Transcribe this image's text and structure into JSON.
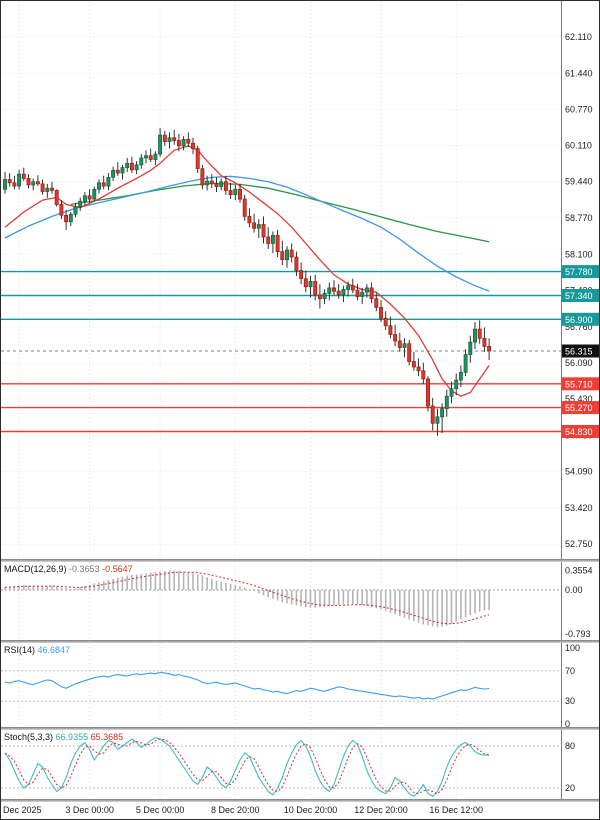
{
  "chart_data": {
    "type": "candlestick",
    "colors": {
      "bull": "#1d9460",
      "bear": "#df372c",
      "wick": "#1c1c1c"
    },
    "price_axis": {
      "ticks": [
        "62.110",
        "61.440",
        "60.770",
        "60.110",
        "59.440",
        "58.770",
        "58.100",
        "57.430",
        "56.760",
        "56.090",
        "55.430",
        "54.760",
        "54.090",
        "53.420",
        "52.750"
      ]
    },
    "x_axis_ticks": [
      {
        "label": "Dec 2025",
        "index": 3,
        "align": "left"
      },
      {
        "label": "3 Dec 00:00",
        "index": 18
      },
      {
        "label": "5 Dec 00:00",
        "index": 33
      },
      {
        "label": "8 Dec 20:00",
        "index": 49
      },
      {
        "label": "10 Dec 20:00",
        "index": 65
      },
      {
        "label": "12 Dec 20:00",
        "index": 80
      },
      {
        "label": "16 Dec 12:00",
        "index": 96
      }
    ],
    "levels": [
      {
        "value": 57.78,
        "label": "57.780",
        "color": "#17999b",
        "type": "resistance"
      },
      {
        "value": 57.34,
        "label": "57.340",
        "color": "#17999b",
        "type": "resistance"
      },
      {
        "value": 56.9,
        "label": "56.900",
        "color": "#17999b",
        "type": "resistance"
      },
      {
        "value": 55.71,
        "label": "55.710",
        "color": "#ef3e36",
        "type": "support"
      },
      {
        "value": 55.27,
        "label": "55.270",
        "color": "#ef3e36",
        "type": "support"
      },
      {
        "value": 54.83,
        "label": "54.830",
        "color": "#ef3e36",
        "type": "support"
      }
    ],
    "current_price": {
      "value": 56.315,
      "label": "56.315",
      "box_color": "#121212"
    },
    "candles": [
      [
        59.3,
        59.62,
        59.22,
        59.48
      ],
      [
        59.48,
        59.6,
        59.35,
        59.42
      ],
      [
        59.42,
        59.55,
        59.3,
        59.36
      ],
      [
        59.36,
        59.66,
        59.3,
        59.58
      ],
      [
        59.58,
        59.7,
        59.45,
        59.5
      ],
      [
        59.5,
        59.58,
        59.32,
        59.38
      ],
      [
        59.38,
        59.5,
        59.28,
        59.44
      ],
      [
        59.44,
        59.56,
        59.36,
        59.4
      ],
      [
        59.4,
        59.48,
        59.2,
        59.26
      ],
      [
        59.26,
        59.4,
        59.14,
        59.32
      ],
      [
        59.32,
        59.44,
        59.22,
        59.28
      ],
      [
        59.28,
        59.3,
        58.98,
        59.02
      ],
      [
        59.02,
        59.1,
        58.75,
        58.82
      ],
      [
        58.82,
        58.92,
        58.55,
        58.7
      ],
      [
        58.7,
        58.88,
        58.62,
        58.84
      ],
      [
        58.84,
        59.05,
        58.78,
        58.98
      ],
      [
        58.98,
        59.15,
        58.9,
        59.08
      ],
      [
        59.08,
        59.25,
        59.0,
        59.18
      ],
      [
        59.18,
        59.3,
        59.05,
        59.12
      ],
      [
        59.12,
        59.35,
        59.08,
        59.3
      ],
      [
        59.3,
        59.48,
        59.22,
        59.42
      ],
      [
        59.42,
        59.55,
        59.3,
        59.36
      ],
      [
        59.36,
        59.6,
        59.28,
        59.52
      ],
      [
        59.52,
        59.72,
        59.45,
        59.65
      ],
      [
        59.65,
        59.8,
        59.55,
        59.6
      ],
      [
        59.6,
        59.75,
        59.48,
        59.7
      ],
      [
        59.7,
        59.88,
        59.62,
        59.78
      ],
      [
        59.78,
        59.9,
        59.6,
        59.66
      ],
      [
        59.66,
        59.82,
        59.58,
        59.75
      ],
      [
        59.75,
        59.95,
        59.68,
        59.88
      ],
      [
        59.88,
        60.02,
        59.78,
        59.92
      ],
      [
        59.92,
        60.05,
        59.8,
        59.85
      ],
      [
        59.85,
        60.0,
        59.75,
        59.95
      ],
      [
        59.95,
        60.43,
        59.9,
        60.3
      ],
      [
        60.3,
        60.38,
        60.1,
        60.18
      ],
      [
        60.18,
        60.35,
        60.05,
        60.25
      ],
      [
        60.25,
        60.4,
        60.12,
        60.2
      ],
      [
        60.2,
        60.32,
        60.0,
        60.1
      ],
      [
        60.1,
        60.28,
        60.02,
        60.22
      ],
      [
        60.22,
        60.35,
        60.08,
        60.15
      ],
      [
        60.15,
        60.25,
        59.95,
        60.05
      ],
      [
        60.05,
        60.1,
        59.6,
        59.68
      ],
      [
        59.68,
        59.75,
        59.3,
        59.38
      ],
      [
        59.38,
        59.55,
        59.28,
        59.45
      ],
      [
        59.45,
        59.58,
        59.32,
        59.4
      ],
      [
        59.4,
        59.52,
        59.25,
        59.35
      ],
      [
        59.35,
        59.5,
        59.28,
        59.44
      ],
      [
        59.44,
        59.55,
        59.2,
        59.28
      ],
      [
        59.28,
        59.42,
        59.12,
        59.2
      ],
      [
        59.2,
        59.38,
        59.1,
        59.3
      ],
      [
        59.3,
        59.4,
        59.05,
        59.12
      ],
      [
        59.12,
        59.2,
        58.72,
        58.8
      ],
      [
        58.8,
        58.95,
        58.6,
        58.68
      ],
      [
        58.68,
        58.85,
        58.5,
        58.58
      ],
      [
        58.58,
        58.75,
        58.4,
        58.65
      ],
      [
        58.65,
        58.8,
        58.3,
        58.42
      ],
      [
        58.42,
        58.6,
        58.2,
        58.3
      ],
      [
        58.3,
        58.52,
        58.12,
        58.45
      ],
      [
        58.45,
        58.55,
        58.05,
        58.15
      ],
      [
        58.15,
        58.35,
        57.9,
        58.0
      ],
      [
        58.0,
        58.25,
        57.85,
        58.18
      ],
      [
        58.18,
        58.3,
        57.95,
        58.05
      ],
      [
        58.05,
        58.15,
        57.7,
        57.8
      ],
      [
        57.8,
        57.95,
        57.55,
        57.65
      ],
      [
        57.65,
        57.8,
        57.4,
        57.5
      ],
      [
        57.5,
        57.7,
        57.3,
        57.6
      ],
      [
        57.6,
        57.72,
        57.25,
        57.35
      ],
      [
        57.35,
        57.55,
        57.1,
        57.28
      ],
      [
        57.28,
        57.45,
        57.18,
        57.38
      ],
      [
        57.38,
        57.58,
        57.25,
        57.48
      ],
      [
        57.48,
        57.62,
        57.35,
        57.42
      ],
      [
        57.42,
        57.55,
        57.28,
        57.35
      ],
      [
        57.35,
        57.52,
        57.22,
        57.45
      ],
      [
        57.45,
        57.6,
        57.32,
        57.52
      ],
      [
        57.52,
        57.65,
        57.38,
        57.44
      ],
      [
        57.44,
        57.55,
        57.25,
        57.32
      ],
      [
        57.32,
        57.48,
        57.18,
        57.4
      ],
      [
        57.4,
        57.55,
        57.3,
        57.48
      ],
      [
        57.48,
        57.58,
        57.2,
        57.28
      ],
      [
        57.28,
        57.38,
        57.05,
        57.12
      ],
      [
        57.12,
        57.25,
        56.85,
        56.92
      ],
      [
        56.92,
        57.05,
        56.7,
        56.78
      ],
      [
        56.78,
        56.95,
        56.55,
        56.62
      ],
      [
        56.62,
        56.8,
        56.4,
        56.5
      ],
      [
        56.5,
        56.65,
        56.3,
        56.38
      ],
      [
        56.38,
        56.55,
        56.2,
        56.45
      ],
      [
        56.45,
        56.52,
        56.05,
        56.12
      ],
      [
        56.12,
        56.3,
        55.95,
        56.02
      ],
      [
        56.02,
        56.18,
        55.85,
        55.95
      ],
      [
        55.95,
        56.1,
        55.7,
        55.8
      ],
      [
        55.8,
        55.85,
        55.2,
        55.3
      ],
      [
        55.3,
        55.45,
        54.85,
        54.98
      ],
      [
        54.98,
        55.25,
        54.75,
        55.1
      ],
      [
        55.1,
        55.35,
        54.8,
        55.25
      ],
      [
        55.25,
        55.6,
        55.1,
        55.48
      ],
      [
        55.48,
        55.75,
        55.35,
        55.62
      ],
      [
        55.62,
        55.9,
        55.5,
        55.78
      ],
      [
        55.78,
        56.05,
        55.65,
        55.92
      ],
      [
        55.92,
        56.35,
        55.85,
        56.25
      ],
      [
        56.25,
        56.6,
        56.1,
        56.48
      ],
      [
        56.48,
        56.85,
        56.35,
        56.72
      ],
      [
        56.72,
        56.88,
        56.45,
        56.55
      ],
      [
        56.55,
        56.75,
        56.3,
        56.4
      ],
      [
        56.4,
        56.55,
        56.15,
        56.315
      ]
    ],
    "moving_averages": [
      {
        "name": "ma-fast-red",
        "color": "#e23a34",
        "points": [
          [
            0,
            58.6
          ],
          [
            4,
            58.88
          ],
          [
            8,
            59.1
          ],
          [
            11,
            59.15
          ],
          [
            13,
            59.02
          ],
          [
            16,
            58.96
          ],
          [
            20,
            59.12
          ],
          [
            24,
            59.32
          ],
          [
            28,
            59.5
          ],
          [
            31,
            59.65
          ],
          [
            33,
            59.78
          ],
          [
            36,
            60.02
          ],
          [
            39,
            60.1
          ],
          [
            41,
            60.02
          ],
          [
            43,
            59.82
          ],
          [
            46,
            59.55
          ],
          [
            49,
            59.42
          ],
          [
            52,
            59.25
          ],
          [
            55,
            59.05
          ],
          [
            58,
            58.85
          ],
          [
            61,
            58.6
          ],
          [
            64,
            58.3
          ],
          [
            67,
            58.0
          ],
          [
            70,
            57.72
          ],
          [
            73,
            57.55
          ],
          [
            76,
            57.45
          ],
          [
            79,
            57.4
          ],
          [
            82,
            57.18
          ],
          [
            85,
            56.92
          ],
          [
            88,
            56.6
          ],
          [
            91,
            56.15
          ],
          [
            93,
            55.8
          ],
          [
            95,
            55.58
          ],
          [
            97,
            55.48
          ],
          [
            99,
            55.55
          ],
          [
            101,
            55.8
          ],
          [
            103,
            56.05
          ]
        ]
      },
      {
        "name": "ma-mid-blue",
        "color": "#3f97e0",
        "points": [
          [
            0,
            58.4
          ],
          [
            5,
            58.62
          ],
          [
            10,
            58.8
          ],
          [
            15,
            58.95
          ],
          [
            20,
            59.05
          ],
          [
            25,
            59.15
          ],
          [
            30,
            59.25
          ],
          [
            35,
            59.36
          ],
          [
            40,
            59.46
          ],
          [
            44,
            59.52
          ],
          [
            48,
            59.54
          ],
          [
            52,
            59.5
          ],
          [
            56,
            59.44
          ],
          [
            60,
            59.34
          ],
          [
            64,
            59.2
          ],
          [
            68,
            59.05
          ],
          [
            72,
            58.9
          ],
          [
            76,
            58.76
          ],
          [
            80,
            58.6
          ],
          [
            84,
            58.38
          ],
          [
            88,
            58.12
          ],
          [
            92,
            57.88
          ],
          [
            96,
            57.68
          ],
          [
            100,
            57.52
          ],
          [
            103,
            57.42
          ]
        ]
      },
      {
        "name": "ma-slow-green",
        "color": "#2e9444",
        "points": [
          [
            14,
            59.02
          ],
          [
            20,
            59.1
          ],
          [
            26,
            59.18
          ],
          [
            32,
            59.28
          ],
          [
            38,
            59.36
          ],
          [
            44,
            59.41
          ],
          [
            50,
            59.39
          ],
          [
            56,
            59.32
          ],
          [
            62,
            59.2
          ],
          [
            68,
            59.06
          ],
          [
            74,
            58.93
          ],
          [
            80,
            58.79
          ],
          [
            86,
            58.65
          ],
          [
            92,
            58.52
          ],
          [
            98,
            58.42
          ],
          [
            103,
            58.33
          ]
        ]
      }
    ],
    "macd": {
      "label": "MACD(12,26,9)",
      "value_main": "-0.3653",
      "value_signal": "-0.5647",
      "axis_labels": [
        {
          "text": "0.3554",
          "value": 0.3554
        },
        {
          "text": "0.00",
          "value": 0
        },
        {
          "text": "-0.793",
          "value": -0.793
        }
      ],
      "histogram": [
        0.05,
        0.06,
        0.07,
        0.08,
        0.09,
        0.08,
        0.07,
        0.06,
        0.06,
        0.07,
        0.08,
        0.07,
        0.05,
        0.03,
        0.02,
        0.03,
        0.05,
        0.07,
        0.09,
        0.12,
        0.14,
        0.16,
        0.18,
        0.2,
        0.22,
        0.24,
        0.26,
        0.27,
        0.28,
        0.29,
        0.3,
        0.31,
        0.32,
        0.33,
        0.34,
        0.35,
        0.35,
        0.34,
        0.33,
        0.32,
        0.3,
        0.28,
        0.26,
        0.23,
        0.2,
        0.17,
        0.15,
        0.13,
        0.11,
        0.09,
        0.07,
        0.04,
        0.01,
        -0.02,
        -0.06,
        -0.1,
        -0.13,
        -0.16,
        -0.19,
        -0.22,
        -0.24,
        -0.26,
        -0.28,
        -0.3,
        -0.31,
        -0.32,
        -0.32,
        -0.31,
        -0.3,
        -0.29,
        -0.28,
        -0.27,
        -0.26,
        -0.25,
        -0.25,
        -0.26,
        -0.27,
        -0.29,
        -0.31,
        -0.33,
        -0.35,
        -0.38,
        -0.41,
        -0.44,
        -0.47,
        -0.5,
        -0.53,
        -0.56,
        -0.59,
        -0.62,
        -0.64,
        -0.66,
        -0.67,
        -0.66,
        -0.64,
        -0.61,
        -0.57,
        -0.53,
        -0.49,
        -0.45,
        -0.42,
        -0.39,
        -0.37,
        -0.3653
      ]
    },
    "rsi": {
      "label": "RSI(14)",
      "value": "46.6847",
      "axis_labels": [
        {
          "text": "100",
          "value": 100
        },
        {
          "text": "70",
          "value": 70
        },
        {
          "text": "30",
          "value": 30
        },
        {
          "text": "0",
          "value": 0
        }
      ],
      "levels": [
        70,
        30
      ],
      "values": [
        55,
        54,
        56,
        57,
        55,
        53,
        52,
        54,
        56,
        58,
        57,
        53,
        49,
        47,
        50,
        53,
        55,
        57,
        59,
        61,
        62,
        63,
        62,
        64,
        65,
        64,
        63,
        65,
        66,
        65,
        66,
        67,
        66,
        68,
        67,
        66,
        64,
        65,
        63,
        62,
        60,
        58,
        55,
        53,
        54,
        55,
        53,
        52,
        53,
        54,
        52,
        50,
        48,
        46,
        47,
        45,
        44,
        42,
        43,
        41,
        40,
        42,
        44,
        43,
        45,
        47,
        46,
        44,
        43,
        45,
        47,
        49,
        48,
        46,
        45,
        44,
        43,
        42,
        41,
        40,
        39,
        38,
        37,
        36,
        37,
        36,
        35,
        34,
        35,
        33,
        34,
        33,
        35,
        37,
        39,
        41,
        43,
        45,
        44,
        46,
        48,
        47,
        46,
        46.68
      ]
    },
    "stoch": {
      "label": "Stoch(5,3,3)",
      "value_k": "66.9355",
      "value_d": "65.3685",
      "axis_labels": [
        {
          "text": "80",
          "value": 80
        },
        {
          "text": "20",
          "value": 20
        }
      ],
      "levels": [
        80,
        20
      ],
      "k": [
        70,
        60,
        45,
        30,
        20,
        25,
        40,
        55,
        50,
        35,
        25,
        15,
        20,
        35,
        55,
        70,
        80,
        85,
        75,
        60,
        70,
        80,
        88,
        85,
        75,
        80,
        85,
        90,
        85,
        78,
        82,
        88,
        92,
        90,
        85,
        80,
        70,
        60,
        50,
        40,
        30,
        25,
        35,
        50,
        45,
        35,
        25,
        20,
        30,
        45,
        60,
        70,
        65,
        50,
        35,
        25,
        15,
        10,
        20,
        35,
        55,
        70,
        82,
        88,
        80,
        65,
        45,
        30,
        20,
        15,
        25,
        45,
        65,
        80,
        88,
        82,
        65,
        45,
        30,
        20,
        15,
        12,
        20,
        35,
        30,
        20,
        12,
        8,
        15,
        25,
        12,
        8,
        15,
        30,
        50,
        65,
        75,
        82,
        85,
        80,
        72,
        68,
        67,
        66.94
      ]
    }
  }
}
